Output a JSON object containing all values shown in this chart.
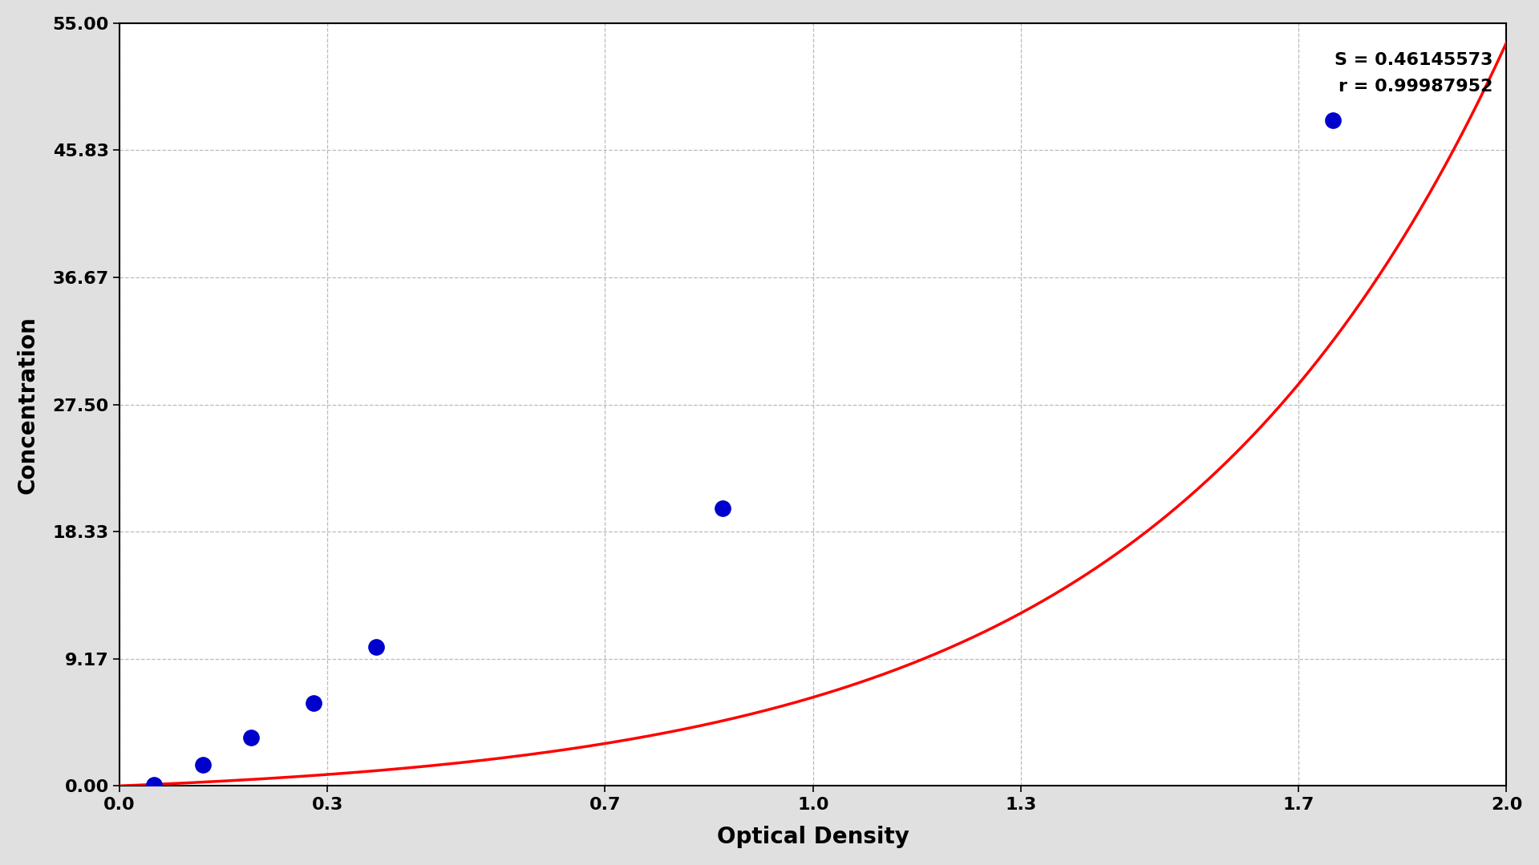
{
  "title": "",
  "xlabel": "Optical Density",
  "ylabel": "Concentration",
  "xlim": [
    0.0,
    2.0
  ],
  "ylim": [
    0.0,
    55.0
  ],
  "yticks": [
    0.0,
    9.17,
    18.33,
    27.5,
    36.67,
    45.83,
    55.0
  ],
  "ytick_labels": [
    "0.00",
    "9.17",
    "18.33",
    "27.50",
    "36.67",
    "45.83",
    "55.00"
  ],
  "xticks": [
    0.0,
    0.3,
    0.7,
    1.0,
    1.3,
    1.7,
    2.0
  ],
  "xtick_labels": [
    "0.0",
    "0.3",
    "0.7",
    "1.0",
    "1.3",
    "1.7",
    "2.0"
  ],
  "data_x": [
    0.05,
    0.12,
    0.19,
    0.28,
    0.37,
    0.87,
    1.75
  ],
  "data_y": [
    0.1,
    1.5,
    3.5,
    6.0,
    10.0,
    20.0,
    48.0
  ],
  "curve_color": "#ff0000",
  "point_color": "#0000cc",
  "point_edge_color": "#0000cc",
  "background_color": "#e0e0e0",
  "plot_bg_color": "#ffffff",
  "grid_color": "#aaaaaa",
  "stats_text": "S = 0.46145573\nr = 0.99987952",
  "xlabel_fontsize": 20,
  "ylabel_fontsize": 20,
  "tick_fontsize": 16,
  "stats_fontsize": 16,
  "point_size": 180,
  "curve_linewidth": 2.5
}
